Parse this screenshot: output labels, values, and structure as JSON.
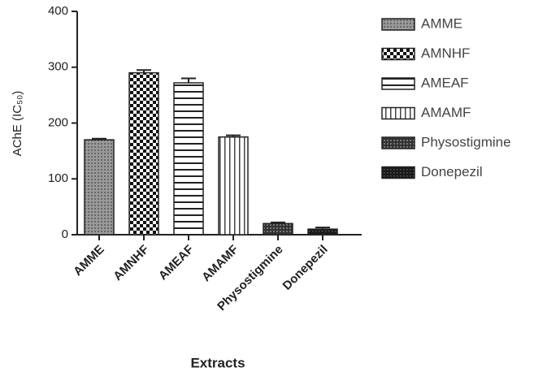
{
  "chart_data": {
    "type": "bar",
    "ylabel": "AChE (IC₅₀)",
    "xlabel": "Extracts",
    "categories": [
      "AMME",
      "AMNHF",
      "AMEAF",
      "AMAMF",
      "Physostigmine",
      "Donepezil"
    ],
    "values": [
      170,
      290,
      272,
      175,
      20,
      10
    ],
    "errors": [
      2,
      5,
      8,
      3,
      2,
      3
    ],
    "patterns": [
      "dots",
      "check",
      "hlines",
      "vlines",
      "darkhatch",
      "darkdots"
    ],
    "ylim": [
      0,
      400
    ],
    "yticks": [
      0,
      100,
      200,
      300,
      400
    ],
    "legend": "right"
  }
}
